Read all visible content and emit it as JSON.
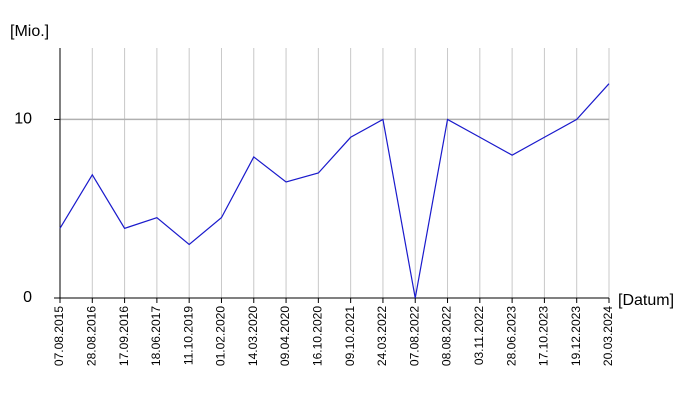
{
  "chart_data": {
    "type": "line",
    "y_label": "[Mio.]",
    "x_label": "[Datum]",
    "categories": [
      "07.08.2015",
      "28.08.2016",
      "17.09.2016",
      "18.06.2017",
      "11.10.2019",
      "01.02.2020",
      "14.03.2020",
      "09.04.2020",
      "16.10.2020",
      "09.10.2021",
      "24.03.2022",
      "07.08.2022",
      "08.08.2022",
      "03.11.2022",
      "28.06.2023",
      "17.10.2023",
      "19.12.2023",
      "20.03.2024"
    ],
    "series": [
      {
        "color": "#1a1acc",
        "values": [
          3.9,
          6.9,
          3.9,
          4.5,
          3.0,
          4.5,
          7.9,
          6.5,
          7.0,
          9.0,
          10.0,
          0,
          10.0,
          9.0,
          8.0,
          9.0,
          10.0,
          12.0
        ]
      }
    ],
    "ylim": [
      0,
      14
    ],
    "yticks": [
      0,
      10
    ],
    "grid": true
  }
}
